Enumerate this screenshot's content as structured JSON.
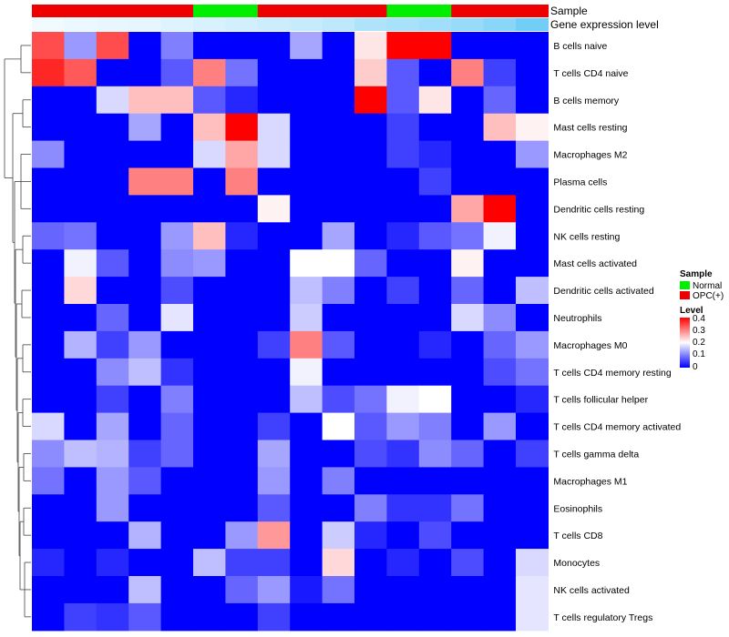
{
  "chart_data": {
    "type": "heatmap",
    "title": "",
    "annotation_tracks": {
      "sample_label": "Sample",
      "expression_label": "Gene expression level"
    },
    "sample_groups": [
      "OPC(+)",
      "OPC(+)",
      "OPC(+)",
      "OPC(+)",
      "OPC(+)",
      "Normal",
      "Normal",
      "OPC(+)",
      "OPC(+)",
      "OPC(+)",
      "OPC(+)",
      "Normal",
      "Normal",
      "OPC(+)",
      "OPC(+)",
      "OPC(+)"
    ],
    "expression_track": [
      0.02,
      0.05,
      0.08,
      0.1,
      0.15,
      0.18,
      0.22,
      0.26,
      0.3,
      0.35,
      0.45,
      0.5,
      0.55,
      0.6,
      0.7,
      0.85
    ],
    "rows": [
      "B cells naive",
      "T cells CD4 naive",
      "B cells memory",
      "Mast cells resting",
      "Macrophages M2",
      "Plasma cells",
      "Dendritic cells resting",
      "NK cells resting",
      "Mast cells activated",
      "Dendritic cells activated",
      "Neutrophils",
      "Macrophages M0",
      "T cells CD4 memory resting",
      "T cells follicular helper",
      "T cells CD4 memory activated",
      "T cells gamma delta",
      "Macrophages M1",
      "Eosinophils",
      "T cells CD8",
      "Monocytes",
      "NK cells activated",
      "T cells regulatory  Tregs"
    ],
    "values": [
      [
        0.34,
        0.12,
        0.34,
        0,
        0.1,
        0,
        0,
        0,
        0.13,
        0,
        0.22,
        0.4,
        0.4,
        0,
        0,
        0
      ],
      [
        0.37,
        0.33,
        0,
        0,
        0.07,
        0.3,
        0.09,
        0,
        0,
        0,
        0.24,
        0.07,
        0,
        0.3,
        0.05,
        0
      ],
      [
        0,
        0,
        0.17,
        0.25,
        0.25,
        0.07,
        0.03,
        0,
        0,
        0,
        0.4,
        0.07,
        0.22,
        0,
        0.08,
        0
      ],
      [
        0,
        0,
        0,
        0.13,
        0,
        0.25,
        0.4,
        0.17,
        0,
        0,
        0,
        0.05,
        0,
        0,
        0.25,
        0.21
      ],
      [
        0.11,
        0,
        0,
        0,
        0,
        0.17,
        0.27,
        0.17,
        0,
        0,
        0,
        0.05,
        0.03,
        0,
        0,
        0.12
      ],
      [
        0,
        0,
        0,
        0.3,
        0.3,
        0,
        0.3,
        0,
        0,
        0,
        0,
        0,
        0.05,
        0,
        0,
        0
      ],
      [
        0,
        0,
        0,
        0,
        0,
        0,
        0,
        0.21,
        0,
        0,
        0,
        0,
        0,
        0.27,
        0.4,
        0
      ],
      [
        0.08,
        0.09,
        0,
        0,
        0.12,
        0.25,
        0.03,
        0,
        0,
        0.13,
        0,
        0.03,
        0.07,
        0.09,
        0.19,
        0
      ],
      [
        0,
        0.19,
        0.07,
        0,
        0.11,
        0.12,
        0,
        0,
        0.2,
        0.2,
        0.08,
        0,
        0,
        0.21,
        0,
        0
      ],
      [
        0,
        0.23,
        0,
        0,
        0.06,
        0,
        0,
        0,
        0.15,
        0.1,
        0,
        0.05,
        0,
        0.08,
        0,
        0.15
      ],
      [
        0,
        0,
        0.08,
        0,
        0.18,
        0,
        0,
        0,
        0.16,
        0,
        0,
        0,
        0,
        0.17,
        0.11,
        0
      ],
      [
        0,
        0.14,
        0.05,
        0.12,
        0,
        0,
        0,
        0.05,
        0.3,
        0.07,
        0,
        0,
        0.03,
        0,
        0.08,
        0.12
      ],
      [
        0,
        0,
        0.11,
        0.15,
        0.04,
        0,
        0,
        0,
        0.19,
        0,
        0,
        0,
        0,
        0,
        0.06,
        0.09
      ],
      [
        0,
        0,
        0.05,
        0,
        0.1,
        0,
        0,
        0,
        0.15,
        0.06,
        0.09,
        0.19,
        0.2,
        0,
        0,
        0.03
      ],
      [
        0.17,
        0,
        0.13,
        0,
        0.08,
        0,
        0,
        0.05,
        0,
        0.2,
        0.07,
        0.12,
        0.1,
        0,
        0.12,
        0
      ],
      [
        0.11,
        0.15,
        0.14,
        0.05,
        0.08,
        0,
        0,
        0.13,
        0,
        0,
        0.06,
        0.04,
        0.11,
        0.08,
        0,
        0.05
      ],
      [
        0.09,
        0,
        0.12,
        0.07,
        0,
        0,
        0,
        0.12,
        0,
        0.1,
        0,
        0,
        0,
        0,
        0,
        0
      ],
      [
        0,
        0,
        0.12,
        0,
        0,
        0,
        0,
        0.07,
        0,
        0,
        0.1,
        0.04,
        0.04,
        0.09,
        0,
        0
      ],
      [
        0,
        0,
        0,
        0.14,
        0,
        0,
        0.12,
        0.28,
        0,
        0.16,
        0.03,
        0,
        0.06,
        0,
        0,
        0
      ],
      [
        0.03,
        0,
        0.03,
        0,
        0,
        0.15,
        0.05,
        0.05,
        0,
        0.23,
        0,
        0.03,
        0,
        0.06,
        0,
        0.17
      ],
      [
        0,
        0,
        0,
        0.15,
        0,
        0,
        0.08,
        0.12,
        0.02,
        0.09,
        0,
        0,
        0,
        0,
        0,
        0.18
      ],
      [
        0,
        0.05,
        0.04,
        0.07,
        0,
        0,
        0,
        0.05,
        0,
        0,
        0,
        0,
        0,
        0,
        0,
        0.18
      ]
    ],
    "legend_sample": {
      "title": "Sample",
      "entries": [
        {
          "label": "Normal",
          "color": "#00ee00"
        },
        {
          "label": "OPC(+)",
          "color": "#ee0000"
        }
      ]
    },
    "legend_level": {
      "title": "Level",
      "ticks": [
        "0.4",
        "0.3",
        "0.2",
        "0.1",
        "0"
      ],
      "range": [
        0,
        0.4
      ]
    },
    "colors": {
      "low": "#0000ff",
      "mid": "#ffffff",
      "high": "#ff0000",
      "mid_value": 0.2,
      "normal": "#00ee00",
      "opc": "#ee0000",
      "expression_low": "#f4fbff",
      "expression_high": "#5bc6f5",
      "dendrogram": "#444444"
    }
  }
}
